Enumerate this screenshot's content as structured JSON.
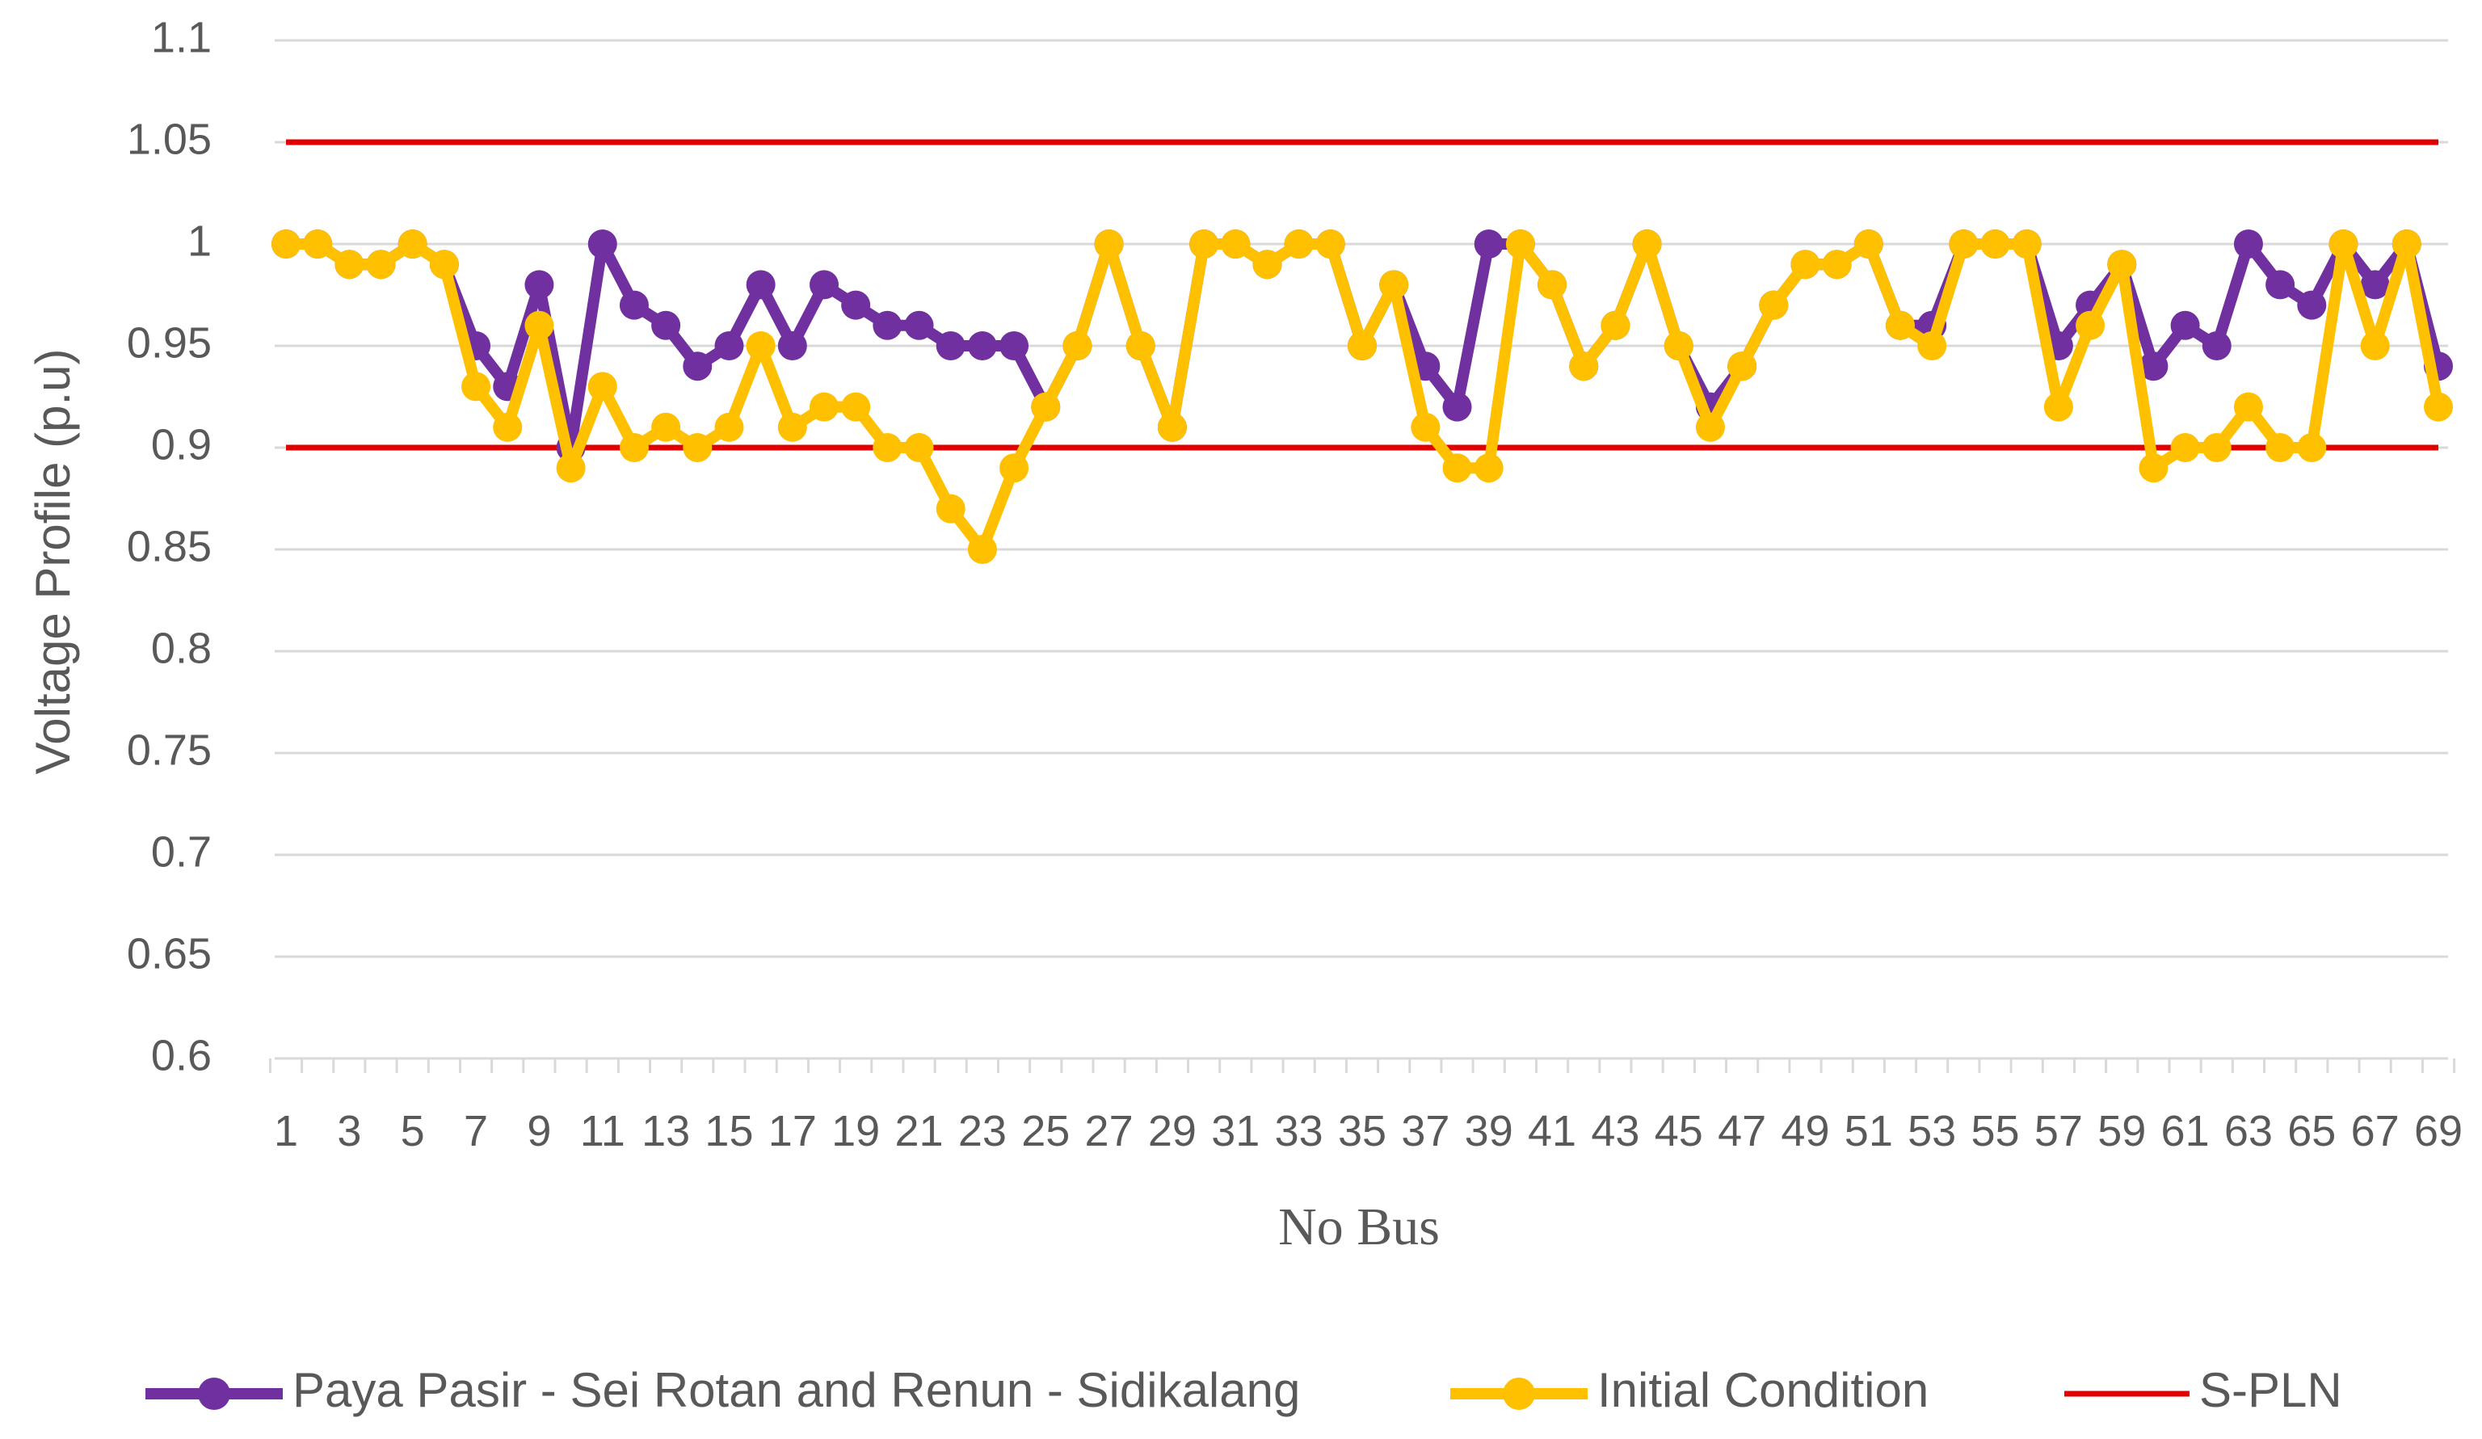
{
  "chart_data": {
    "type": "line",
    "title": "",
    "xlabel": "No Bus",
    "ylabel": "Voltage Profile (p.u)",
    "ylim": [
      0.6,
      1.1
    ],
    "yticks": [
      "0.6",
      "0.65",
      "0.7",
      "0.75",
      "0.8",
      "0.85",
      "0.9",
      "0.95",
      "1",
      "1.05",
      "1.1"
    ],
    "y_tick_values": [
      0.6,
      0.65,
      0.7,
      0.75,
      0.8,
      0.85,
      0.9,
      0.95,
      1.0,
      1.05,
      1.1
    ],
    "x": [
      1,
      2,
      3,
      4,
      5,
      6,
      7,
      8,
      9,
      10,
      11,
      12,
      13,
      14,
      15,
      16,
      17,
      18,
      19,
      20,
      21,
      22,
      23,
      24,
      25,
      26,
      27,
      28,
      29,
      30,
      31,
      32,
      33,
      34,
      35,
      36,
      37,
      38,
      39,
      40,
      41,
      42,
      43,
      44,
      45,
      46,
      47,
      48,
      49,
      50,
      51,
      52,
      53,
      54,
      55,
      56,
      57,
      58,
      59,
      60,
      61,
      62,
      63,
      64,
      65,
      66,
      67,
      68,
      69
    ],
    "xticks": [
      "1",
      "3",
      "5",
      "7",
      "9",
      "11",
      "13",
      "15",
      "17",
      "19",
      "21",
      "23",
      "25",
      "27",
      "29",
      "31",
      "33",
      "35",
      "37",
      "39",
      "41",
      "43",
      "45",
      "47",
      "49",
      "51",
      "53",
      "55",
      "57",
      "59",
      "61",
      "63",
      "65",
      "67",
      "69"
    ],
    "grid": true,
    "legend_position": "bottom",
    "series": [
      {
        "name": "Paya Pasir - Sei Rotan and Renun - Sidikalang",
        "color": "#7030A0",
        "marker": "circle",
        "values": [
          1,
          1,
          0.99,
          0.99,
          1,
          0.99,
          0.95,
          0.93,
          0.98,
          0.9,
          1,
          0.97,
          0.96,
          0.94,
          0.95,
          0.98,
          0.95,
          0.98,
          0.97,
          0.96,
          0.96,
          0.95,
          0.95,
          0.95,
          0.92,
          0.95,
          1,
          0.95,
          0.91,
          1,
          1,
          0.99,
          1,
          1,
          0.95,
          0.98,
          0.94,
          0.92,
          1,
          1,
          0.98,
          0.94,
          0.96,
          1,
          0.95,
          0.92,
          0.94,
          0.97,
          0.99,
          0.99,
          1,
          0.96,
          0.96,
          1,
          1,
          1,
          0.95,
          0.97,
          0.99,
          0.94,
          0.96,
          0.95,
          1,
          0.98,
          0.97,
          1,
          0.98,
          1,
          0.94
        ]
      },
      {
        "name": "Initial Condition",
        "color": "#FFC000",
        "marker": "circle",
        "values": [
          1,
          1,
          0.99,
          0.99,
          1,
          0.99,
          0.93,
          0.91,
          0.96,
          0.89,
          0.93,
          0.9,
          0.91,
          0.9,
          0.91,
          0.95,
          0.91,
          0.92,
          0.92,
          0.9,
          0.9,
          0.87,
          0.85,
          0.89,
          0.92,
          0.95,
          1,
          0.95,
          0.91,
          1,
          1,
          0.99,
          1,
          1,
          0.95,
          0.98,
          0.91,
          0.89,
          0.89,
          1,
          0.98,
          0.94,
          0.96,
          1,
          0.95,
          0.91,
          0.94,
          0.97,
          0.99,
          0.99,
          1,
          0.96,
          0.95,
          1,
          1,
          1,
          0.92,
          0.96,
          0.99,
          0.89,
          0.9,
          0.9,
          0.92,
          0.9,
          0.9,
          1,
          0.95,
          1,
          0.92
        ]
      },
      {
        "name": "S-PLN",
        "color": "#E00000",
        "marker": "none",
        "upper": 1.05,
        "lower": 0.9
      }
    ]
  }
}
